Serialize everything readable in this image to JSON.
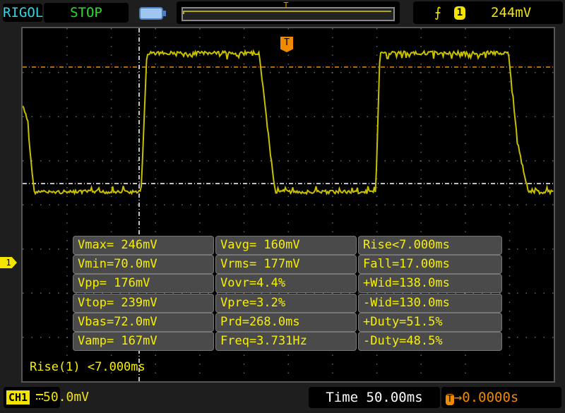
{
  "header": {
    "brand": "RIGOL",
    "run_status": "STOP",
    "trigger": {
      "edge_icon": "rising-edge-icon",
      "channel": "1",
      "level": "244mV"
    }
  },
  "colors": {
    "channel1": "#c8c000",
    "trigger": "#f08a00",
    "status": "#22e022",
    "brand": "#2fd8e8"
  },
  "measurements": [
    [
      "Vmax= 246mV",
      "Vavg= 160mV",
      "Rise<7.000ms"
    ],
    [
      "Vmin=70.0mV",
      "Vrms= 177mV",
      "Fall=17.00ms"
    ],
    [
      "Vpp= 176mV",
      "Vovr=4.4%",
      "+Wid=138.0ms"
    ],
    [
      "Vtop= 239mV",
      "Vpre=3.2%",
      "-Wid=130.0ms"
    ],
    [
      "Vbas=72.0mV",
      "Prd=268.0ms",
      "+Duty=51.5%"
    ],
    [
      "Vamp= 167mV",
      "Freq=3.731Hz",
      "-Duty=48.5%"
    ]
  ],
  "cursor_readout": "Rise(1) <7.000ms",
  "footer": {
    "channel_label": "CH1",
    "volts_per_div": "50.0mV",
    "timebase": "Time 50.00ms",
    "trigger_offset": "0.0000s",
    "trigger_marker": "T",
    "channel_marker": "1"
  }
}
